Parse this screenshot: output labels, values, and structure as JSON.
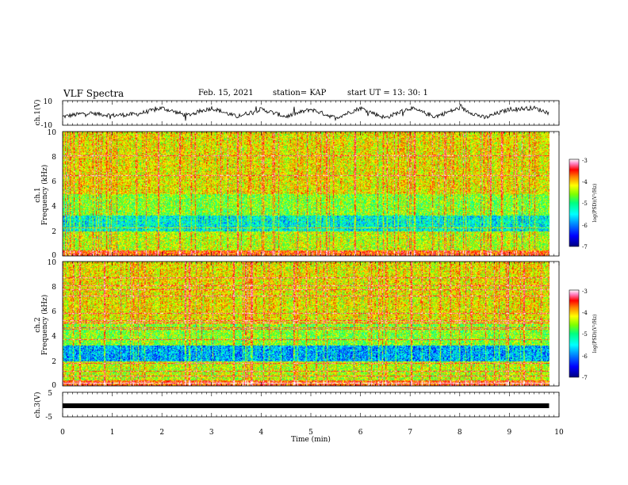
{
  "header": {
    "title": "VLF Spectra",
    "date": "Feb. 15, 2021",
    "station": "station= KAP",
    "start_ut": "start UT =  13: 30: 1"
  },
  "colors": {
    "spectrogram": [
      "#000080",
      "#0000ff",
      "#0080ff",
      "#00ffff",
      "#00ff80",
      "#80ff00",
      "#ffff00",
      "#ff8000",
      "#ff0000",
      "#ff80c0",
      "#ffffff"
    ],
    "trace": "#000000",
    "axis": "#000000"
  },
  "chart_data": [
    {
      "type": "line",
      "panel": "ch1-waveform",
      "ylabel": "ch.1(V)",
      "ylim": [
        -10,
        10
      ],
      "y_ticks": [
        "10",
        "-10"
      ],
      "xlim": [
        0,
        10
      ],
      "x": [
        0,
        0.5,
        1,
        1.5,
        2,
        2.5,
        3,
        3.5,
        4,
        4.5,
        5,
        5.5,
        6,
        6.5,
        7,
        7.5,
        8,
        8.5,
        9,
        9.5,
        9.8
      ],
      "values": [
        -3,
        0,
        -2,
        -1,
        4,
        -2,
        4,
        -3,
        3,
        -3,
        3,
        -4,
        4,
        -4,
        4,
        -3,
        4,
        -4,
        3,
        4,
        0
      ]
    },
    {
      "type": "heatmap",
      "panel": "ch1-spectrogram",
      "ylabel": "ch.1\nFrequency  (kHz)",
      "ylim": [
        0,
        10
      ],
      "y_ticks": [
        "0",
        "2",
        "4",
        "6",
        "8",
        "10"
      ],
      "xlim": [
        0,
        10
      ],
      "colorbar": {
        "label": "log(PSD)(V²/Hz)",
        "range": [
          -7,
          -3
        ],
        "ticks": [
          "-3",
          "-4",
          "-5",
          "-6",
          "-7"
        ]
      }
    },
    {
      "type": "heatmap",
      "panel": "ch2-spectrogram",
      "ylabel": "ch.2\nFrequency  (kHz)",
      "ylim": [
        0,
        10
      ],
      "y_ticks": [
        "0",
        "2",
        "4",
        "6",
        "8",
        "10"
      ],
      "xlim": [
        0,
        10
      ],
      "colorbar": {
        "label": "log(PSD)(V²/Hz)",
        "range": [
          -7,
          -3
        ],
        "ticks": [
          "-3",
          "-4",
          "-5",
          "-6",
          "-7"
        ]
      }
    },
    {
      "type": "line",
      "panel": "ch3-waveform",
      "ylabel": "ch.3(V)",
      "ylim": [
        -5,
        5
      ],
      "y_ticks": [
        "5",
        "-5"
      ],
      "xlim": [
        0,
        10
      ],
      "x": [
        0,
        9.8
      ],
      "values": [
        -0.5,
        -0.5
      ]
    }
  ],
  "xaxis": {
    "label": "Time  (min)",
    "ticks": [
      "0",
      "1",
      "2",
      "3",
      "4",
      "5",
      "6",
      "7",
      "8",
      "9",
      "10"
    ]
  }
}
